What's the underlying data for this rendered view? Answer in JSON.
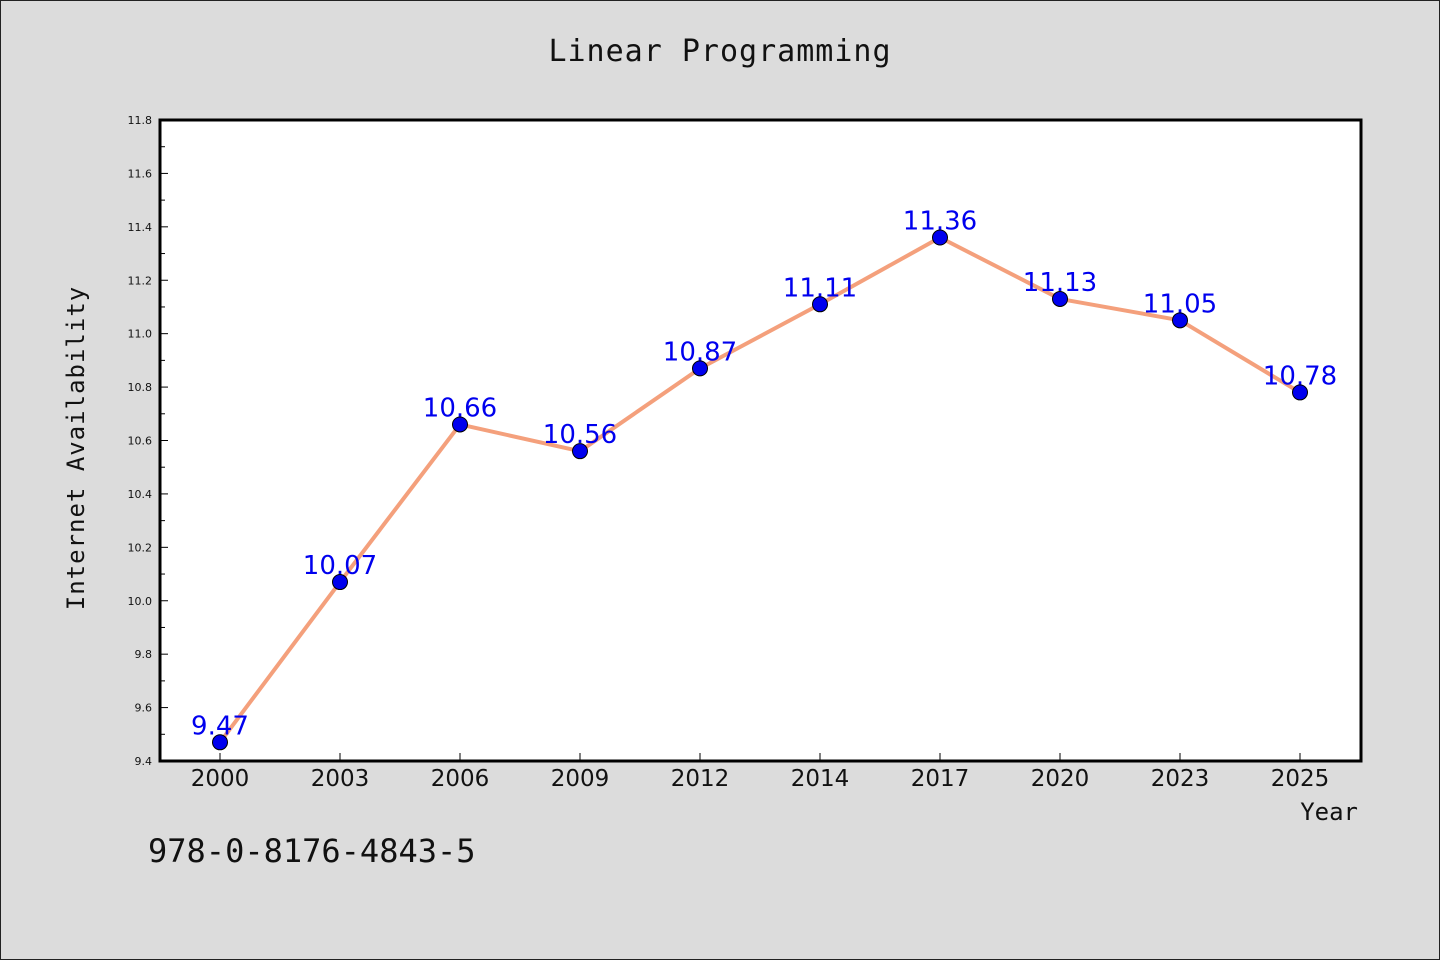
{
  "chart_data": {
    "type": "line",
    "title": "Linear Programming",
    "xlabel": "Year",
    "ylabel": "Internet Availability",
    "categories": [
      "2000",
      "2003",
      "2006",
      "2009",
      "2012",
      "2014",
      "2017",
      "2020",
      "2023",
      "2025"
    ],
    "values": [
      9.47,
      10.07,
      10.66,
      10.56,
      10.87,
      11.11,
      11.36,
      11.13,
      11.05,
      10.78
    ],
    "data_labels": [
      "9.47",
      "10.07",
      "10.66",
      "10.56",
      "10.87",
      "11.11",
      "11.36",
      "11.13",
      "11.05",
      "10.78"
    ],
    "ylim": [
      9.4,
      11.8
    ],
    "yticks": [
      "9.4",
      "9.6",
      "9.8",
      "10.0",
      "10.2",
      "10.4",
      "10.6",
      "10.8",
      "11.0",
      "11.2",
      "11.4",
      "11.6",
      "11.8"
    ],
    "grid": false,
    "line_color": "#f4a07c",
    "marker_color": "#0000ee",
    "label_color": "#0000ee"
  },
  "annotation": {
    "isbn": "978-0-8176-4843-5"
  }
}
